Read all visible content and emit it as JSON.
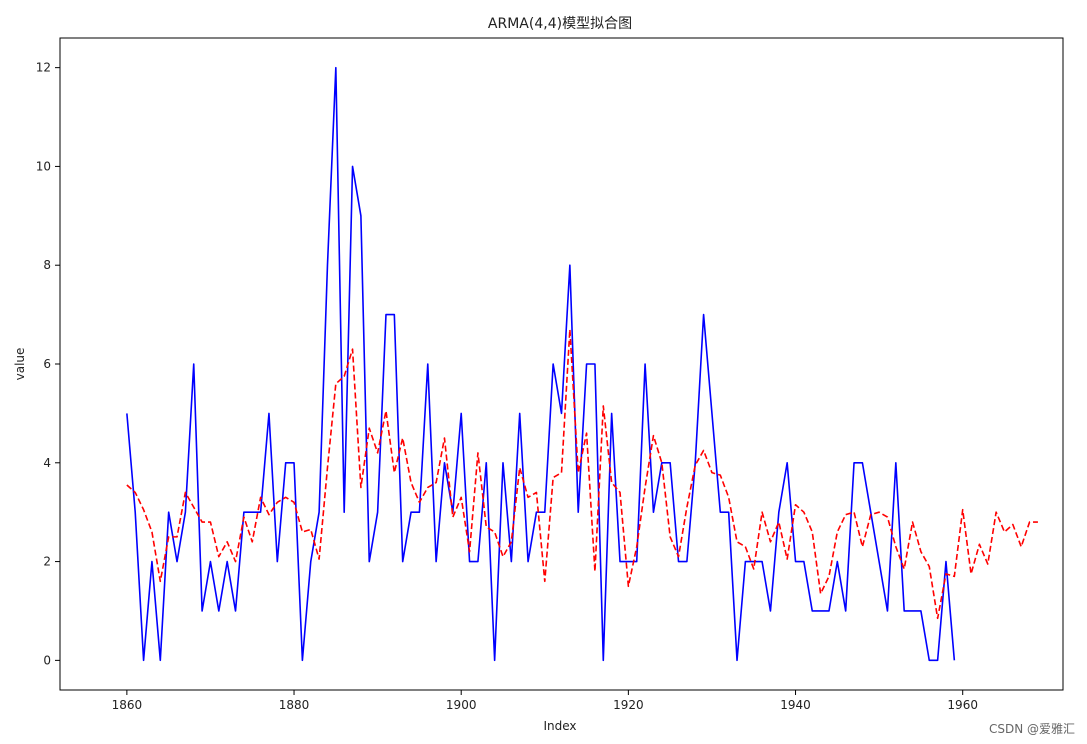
{
  "chart_data": {
    "type": "line",
    "title": "ARMA(4,4)模型拟合图",
    "xlabel": "Index",
    "ylabel": "value",
    "xlim": [
      1852,
      1972
    ],
    "ylim": [
      -0.6,
      12.6
    ],
    "x_ticks": [
      1860,
      1880,
      1900,
      1920,
      1940,
      1960
    ],
    "y_ticks": [
      0,
      2,
      4,
      6,
      8,
      10,
      12
    ],
    "grid": false,
    "legend": "none",
    "series": [
      {
        "color": "#0000ff",
        "style": "solid",
        "x_start": 1860,
        "values": [
          5,
          3,
          0,
          2,
          0,
          3,
          2,
          3,
          6,
          1,
          2,
          1,
          2,
          1,
          3,
          3,
          3,
          5,
          2,
          4,
          4,
          0,
          2,
          3,
          8,
          12,
          3,
          10,
          9,
          2,
          3,
          7,
          7,
          2,
          3,
          3,
          6,
          2,
          4,
          3,
          5,
          2,
          2,
          4,
          0,
          4,
          2,
          5,
          2,
          3,
          3,
          6,
          5,
          8,
          3,
          6,
          6,
          0,
          5,
          2,
          2,
          2,
          6,
          3,
          4,
          4,
          2,
          2,
          4,
          7,
          5,
          3,
          3,
          0,
          2,
          2,
          2,
          1,
          3,
          4,
          2,
          2,
          1,
          1,
          1,
          2,
          1,
          4,
          4,
          3,
          2,
          1,
          4,
          1,
          1,
          1,
          0,
          0,
          2,
          0
        ]
      },
      {
        "color": "#ff0000",
        "style": "dashed",
        "x_start": 1860,
        "values": [
          3.55,
          3.4,
          3.05,
          2.6,
          1.6,
          2.5,
          2.5,
          3.4,
          3.1,
          2.8,
          2.8,
          2.1,
          2.4,
          2.0,
          2.9,
          2.4,
          3.3,
          2.95,
          3.2,
          3.3,
          3.2,
          2.6,
          2.65,
          2.05,
          3.9,
          5.6,
          5.75,
          6.3,
          3.5,
          4.7,
          4.2,
          5.05,
          3.8,
          4.5,
          3.6,
          3.2,
          3.5,
          3.6,
          4.5,
          2.9,
          3.3,
          2.2,
          4.2,
          2.7,
          2.6,
          2.1,
          2.4,
          3.9,
          3.3,
          3.4,
          1.6,
          3.7,
          3.8,
          6.7,
          3.8,
          4.6,
          1.8,
          5.15,
          3.6,
          3.4,
          1.5,
          2.3,
          3.5,
          4.55,
          4.0,
          2.5,
          2.1,
          3.1,
          3.95,
          4.25,
          3.8,
          3.75,
          3.3,
          2.4,
          2.3,
          1.85,
          3.0,
          2.4,
          2.8,
          2.05,
          3.15,
          3.0,
          2.6,
          1.35,
          1.7,
          2.6,
          2.95,
          3.0,
          2.3,
          2.95,
          3.0,
          2.9,
          2.3,
          1.85,
          2.8,
          2.2,
          1.9,
          0.85,
          1.75,
          1.7,
          3.05,
          1.75,
          2.35,
          1.95,
          3.0,
          2.6,
          2.75,
          2.3,
          2.8,
          2.8
        ]
      }
    ]
  },
  "watermark": "CSDN @爱雅汇"
}
